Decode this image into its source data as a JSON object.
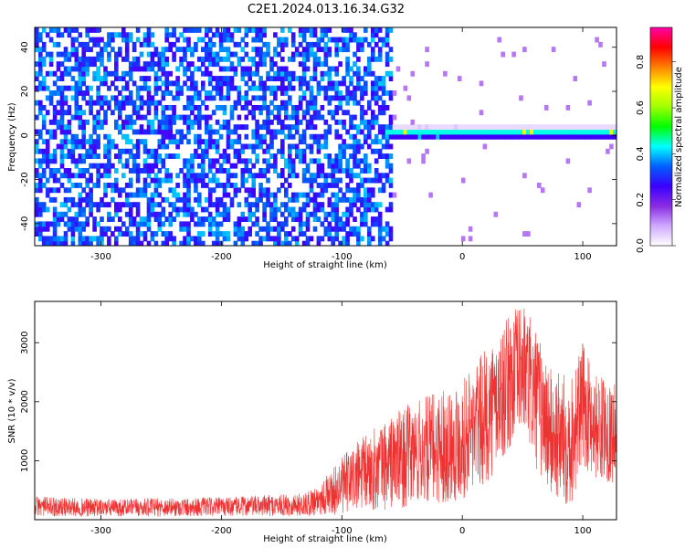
{
  "title": "C2E1.2024.013.16.34.G32",
  "colors": {
    "snr_line": "#ee3333",
    "speckle": "#7a1fff",
    "frame": "#000000"
  },
  "chart_data": [
    {
      "type": "heatmap",
      "xlabel": "Height of straight line (km)",
      "ylabel": "Frequency (Hz)",
      "xlim": [
        -355,
        128
      ],
      "ylim": [
        -50,
        49
      ],
      "xticks": [
        -300,
        -200,
        -100,
        0,
        100
      ],
      "yticks": [
        -40,
        -20,
        0,
        20,
        40
      ],
      "colorbar": {
        "label": "Normalized spectral amplitude",
        "ticks": [
          0.0,
          0.2,
          0.4,
          0.6,
          0.8
        ],
        "tick_labels": [
          "0.0",
          "0.2",
          "0.4",
          "0.6",
          "0.8"
        ],
        "range": [
          0.0,
          0.95
        ],
        "colormap": [
          "#ffffff",
          "#d0a8ff",
          "#8a2be2",
          "#3a00ff",
          "#0060ff",
          "#00ffff",
          "#00ff00",
          "#a0ff00",
          "#ffff00",
          "#ff8000",
          "#ff0000",
          "#ff00aa"
        ]
      },
      "description_features": {
        "noise_region_x": [
          -355,
          -60
        ],
        "noise_amplitude": 0.3,
        "signal_onset_x": -65,
        "signal_freq_hz": 0,
        "signal_amplitude": 0.55,
        "signal_peak_amplitude": 0.85
      }
    },
    {
      "type": "line",
      "xlabel": "Height of straight line (km)",
      "ylabel": "SNR (10 * v/v)",
      "xlim": [
        -355,
        128
      ],
      "ylim": [
        0,
        3700
      ],
      "xticks": [
        -300,
        -200,
        -100,
        0,
        100
      ],
      "yticks": [
        1000,
        2000,
        3000
      ],
      "envelope": {
        "x": [
          -355,
          -300,
          -200,
          -130,
          -110,
          -90,
          -70,
          -50,
          -30,
          -10,
          0,
          20,
          40,
          50,
          60,
          75,
          90,
          100,
          110,
          128
        ],
        "max": [
          400,
          350,
          380,
          450,
          800,
          1300,
          1600,
          1900,
          2100,
          2300,
          2400,
          2900,
          3500,
          3700,
          3300,
          2500,
          2500,
          3000,
          2500,
          2300
        ],
        "min": [
          60,
          50,
          60,
          60,
          80,
          100,
          150,
          200,
          250,
          300,
          350,
          600,
          1200,
          1500,
          900,
          300,
          200,
          900,
          700,
          600
        ]
      }
    }
  ]
}
